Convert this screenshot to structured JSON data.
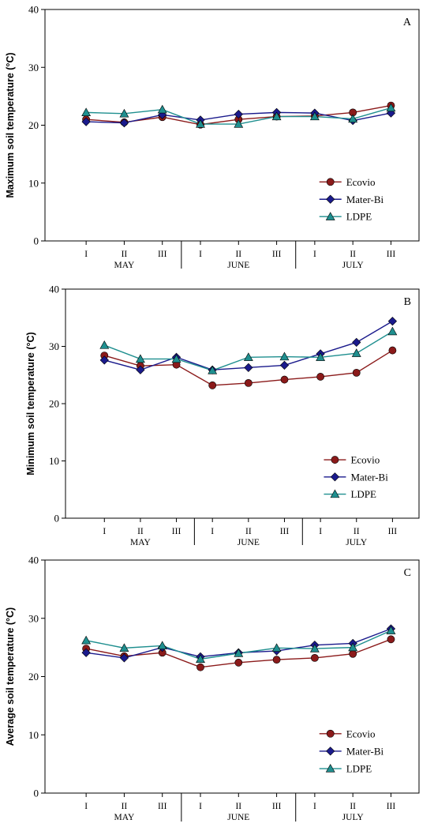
{
  "figure": {
    "panels": [
      {
        "letter": "A",
        "ylabel": "Maximum soil temperature (°C)"
      },
      {
        "letter": "B",
        "ylabel": "Minimum soil temperature (°C)"
      },
      {
        "letter": "C",
        "ylabel": "Average soil temperature (°C)"
      }
    ],
    "months": [
      "MAY",
      "JUNE",
      "JULY"
    ],
    "decades": [
      "I",
      "II",
      "III"
    ],
    "legend_placement": "bottom-right"
  },
  "series_style": [
    {
      "name": "Ecovio",
      "color": "#8B1A1A",
      "marker": "circle"
    },
    {
      "name": "Mater-Bi",
      "color": "#1A1A8C",
      "marker": "diamond"
    },
    {
      "name": "LDPE",
      "color": "#1F8F8F",
      "marker": "triangle"
    }
  ],
  "chart_data": [
    {
      "type": "line",
      "title": "A",
      "xlabel": "",
      "ylabel": "Maximum soil temperature (°C)",
      "categories": [
        "I",
        "II",
        "III",
        "I",
        "II",
        "III",
        "I",
        "II",
        "III"
      ],
      "category_groups": [
        "MAY",
        "MAY",
        "MAY",
        "JUNE",
        "JUNE",
        "JUNE",
        "JULY",
        "JULY",
        "JULY"
      ],
      "ylim": [
        0,
        40
      ],
      "yticks": [
        0,
        10,
        20,
        30,
        40
      ],
      "grid": false,
      "legend": "bottom-right",
      "series": [
        {
          "name": "Ecovio",
          "values": [
            21.0,
            20.5,
            21.4,
            20.1,
            21.0,
            21.5,
            21.6,
            22.2,
            23.4
          ]
        },
        {
          "name": "Mater-Bi",
          "values": [
            20.6,
            20.4,
            21.8,
            20.9,
            21.9,
            22.2,
            22.1,
            20.8,
            22.1
          ]
        },
        {
          "name": "LDPE",
          "values": [
            22.2,
            22.0,
            22.7,
            20.2,
            20.2,
            21.5,
            21.5,
            21.1,
            23.0
          ]
        }
      ]
    },
    {
      "type": "line",
      "title": "B",
      "xlabel": "",
      "ylabel": "Minimum soil temperature (°C)",
      "categories": [
        "I",
        "II",
        "III",
        "I",
        "II",
        "III",
        "I",
        "II",
        "III"
      ],
      "category_groups": [
        "MAY",
        "MAY",
        "MAY",
        "JUNE",
        "JUNE",
        "JUNE",
        "JULY",
        "JULY",
        "JULY"
      ],
      "ylim": [
        0,
        40
      ],
      "yticks": [
        0,
        10,
        20,
        30,
        40
      ],
      "grid": false,
      "legend": "bottom-right",
      "series": [
        {
          "name": "Ecovio",
          "values": [
            28.4,
            26.6,
            26.8,
            23.2,
            23.6,
            24.2,
            24.7,
            25.4,
            29.3
          ]
        },
        {
          "name": "Mater-Bi",
          "values": [
            27.6,
            25.9,
            28.1,
            25.9,
            26.3,
            26.7,
            28.7,
            30.7,
            34.4
          ]
        },
        {
          "name": "LDPE",
          "values": [
            30.2,
            27.8,
            27.8,
            25.8,
            28.1,
            28.2,
            28.1,
            28.8,
            32.6
          ]
        }
      ]
    },
    {
      "type": "line",
      "title": "C",
      "xlabel": "",
      "ylabel": "Average soil temperature (°C)",
      "categories": [
        "I",
        "II",
        "III",
        "I",
        "II",
        "III",
        "I",
        "II",
        "III"
      ],
      "category_groups": [
        "MAY",
        "MAY",
        "MAY",
        "JUNE",
        "JUNE",
        "JUNE",
        "JULY",
        "JULY",
        "JULY"
      ],
      "ylim": [
        0,
        40
      ],
      "yticks": [
        0,
        10,
        20,
        30,
        40
      ],
      "grid": false,
      "legend": "bottom-right",
      "series": [
        {
          "name": "Ecovio",
          "values": [
            24.8,
            23.5,
            24.1,
            21.6,
            22.4,
            22.9,
            23.2,
            23.9,
            26.4
          ]
        },
        {
          "name": "Mater-Bi",
          "values": [
            24.1,
            23.2,
            25.0,
            23.4,
            24.1,
            24.4,
            25.4,
            25.7,
            28.2
          ]
        },
        {
          "name": "LDPE",
          "values": [
            26.2,
            24.9,
            25.3,
            23.0,
            24.0,
            24.9,
            24.8,
            25.0,
            27.9
          ]
        }
      ]
    }
  ]
}
